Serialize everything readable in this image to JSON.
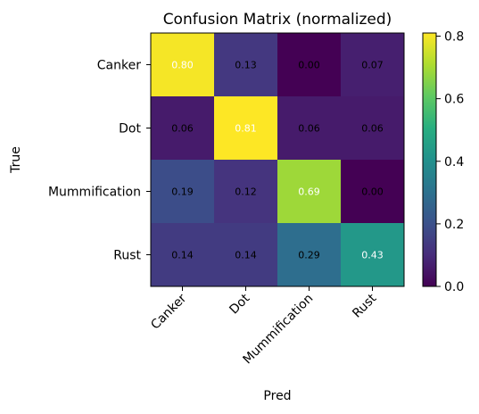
{
  "chart_data": {
    "type": "heatmap",
    "title": "Confusion Matrix (normalized)",
    "xlabel": "Pred",
    "ylabel": "True",
    "x_categories": [
      "Canker",
      "Dot",
      "Mummification",
      "Rust"
    ],
    "y_categories": [
      "Canker",
      "Dot",
      "Mummification",
      "Rust"
    ],
    "values": [
      [
        0.8,
        0.13,
        0.0,
        0.07
      ],
      [
        0.06,
        0.81,
        0.06,
        0.06
      ],
      [
        0.19,
        0.12,
        0.69,
        0.0
      ],
      [
        0.14,
        0.14,
        0.29,
        0.43
      ]
    ],
    "cell_labels": [
      [
        "0.80",
        "0.13",
        "0.00",
        "0.07"
      ],
      [
        "0.06",
        "0.81",
        "0.06",
        "0.06"
      ],
      [
        "0.19",
        "0.12",
        "0.69",
        "0.00"
      ],
      [
        "0.14",
        "0.14",
        "0.29",
        "0.43"
      ]
    ],
    "colormap": "viridis",
    "color_range": [
      0.0,
      0.81
    ],
    "colorbar_ticks": [
      "0.0",
      "0.2",
      "0.4",
      "0.6",
      "0.8"
    ],
    "colorbar_tick_values": [
      0.0,
      0.2,
      0.4,
      0.6,
      0.8
    ],
    "label_text_colors": {
      "dark_cell": "#ffffff",
      "light_cell": "#000000"
    }
  }
}
